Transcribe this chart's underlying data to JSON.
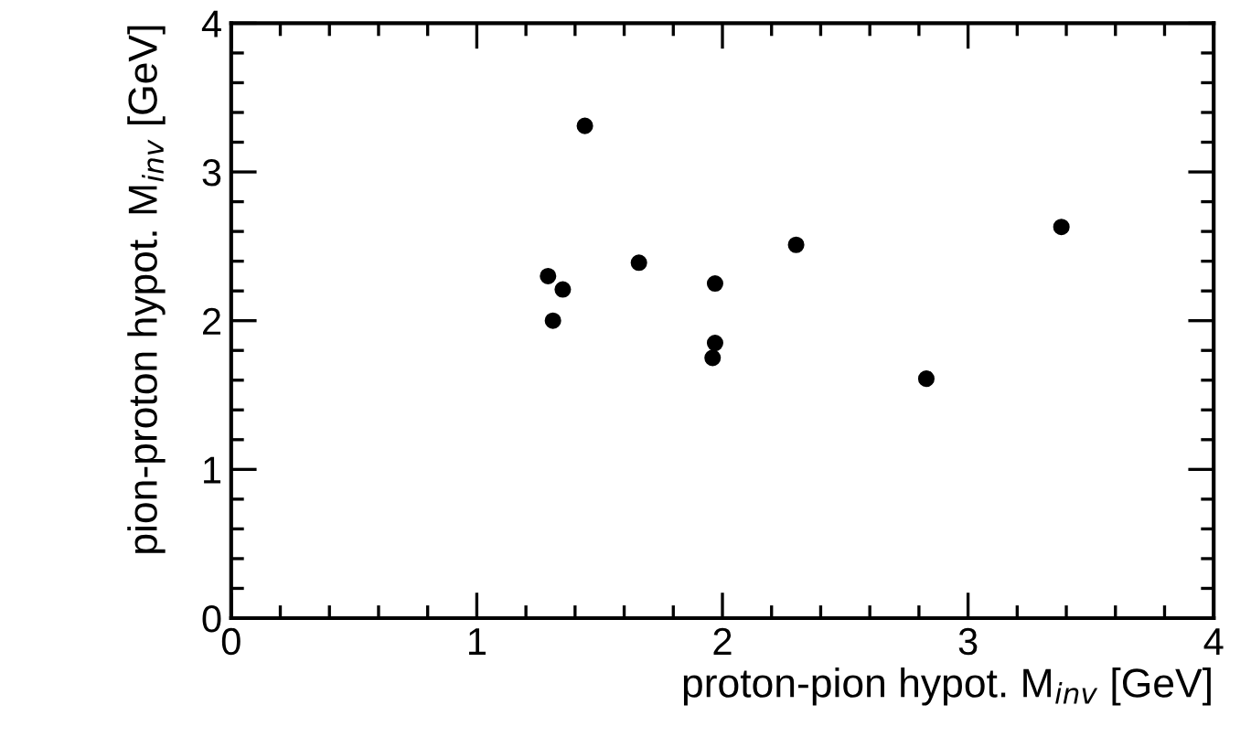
{
  "chart_data": {
    "type": "scatter",
    "xlabel": "proton-pion hypot. M$_{inv}$ [GeV]",
    "ylabel": "pion-proton hypot. M$_{inv}$ [GeV]",
    "x": [
      1.44,
      1.29,
      1.35,
      1.31,
      1.66,
      1.97,
      1.97,
      1.96,
      2.3,
      3.38,
      2.83
    ],
    "values": [
      3.31,
      2.3,
      2.21,
      2.0,
      2.39,
      2.25,
      1.85,
      1.75,
      2.51,
      2.63,
      1.61
    ],
    "color": "#000000",
    "marker": "circle",
    "xlim": [
      0,
      4
    ],
    "ylim": [
      0,
      4
    ],
    "xticks": [
      0,
      1,
      2,
      3,
      4
    ],
    "yticks": [
      0,
      1,
      2,
      3,
      4
    ],
    "grid": false,
    "legend": false
  }
}
